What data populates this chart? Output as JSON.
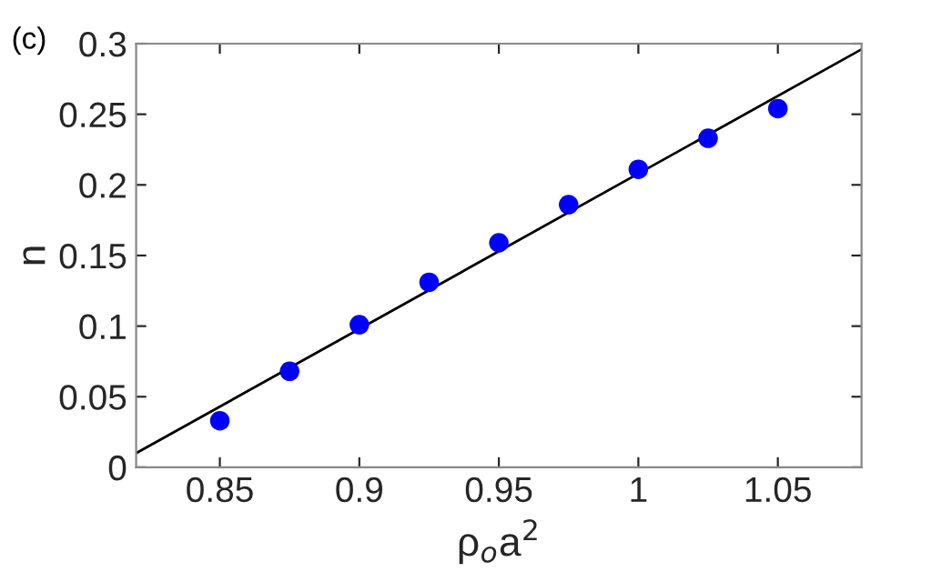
{
  "chart_data": {
    "type": "scatter",
    "xlabel": "ρ$_{o}$a$^{2}$",
    "ylabel": "n",
    "annotations": [
      "(c)"
    ],
    "xlim": [
      0.82,
      1.08
    ],
    "xticks": [
      0.85,
      0.9,
      0.95,
      1,
      1.05
    ],
    "ylim": [
      0,
      0.3
    ],
    "yticks": [
      0,
      0.05,
      0.1,
      0.15,
      0.2,
      0.25,
      0.3
    ],
    "grid": false,
    "series": [
      {
        "marker": "circle",
        "color": "#0000ff",
        "x": [
          0.85,
          0.875,
          0.9,
          0.925,
          0.95,
          0.975,
          1.0,
          1.025,
          1.05
        ],
        "values": [
          0.033,
          0.068,
          0.101,
          0.131,
          0.159,
          0.186,
          0.211,
          0.233,
          0.254
        ]
      },
      {
        "type": "line",
        "marker": "none",
        "color": "#000000",
        "x": [
          0.82,
          1.08
        ],
        "values": [
          0.01,
          0.296
        ]
      }
    ]
  }
}
